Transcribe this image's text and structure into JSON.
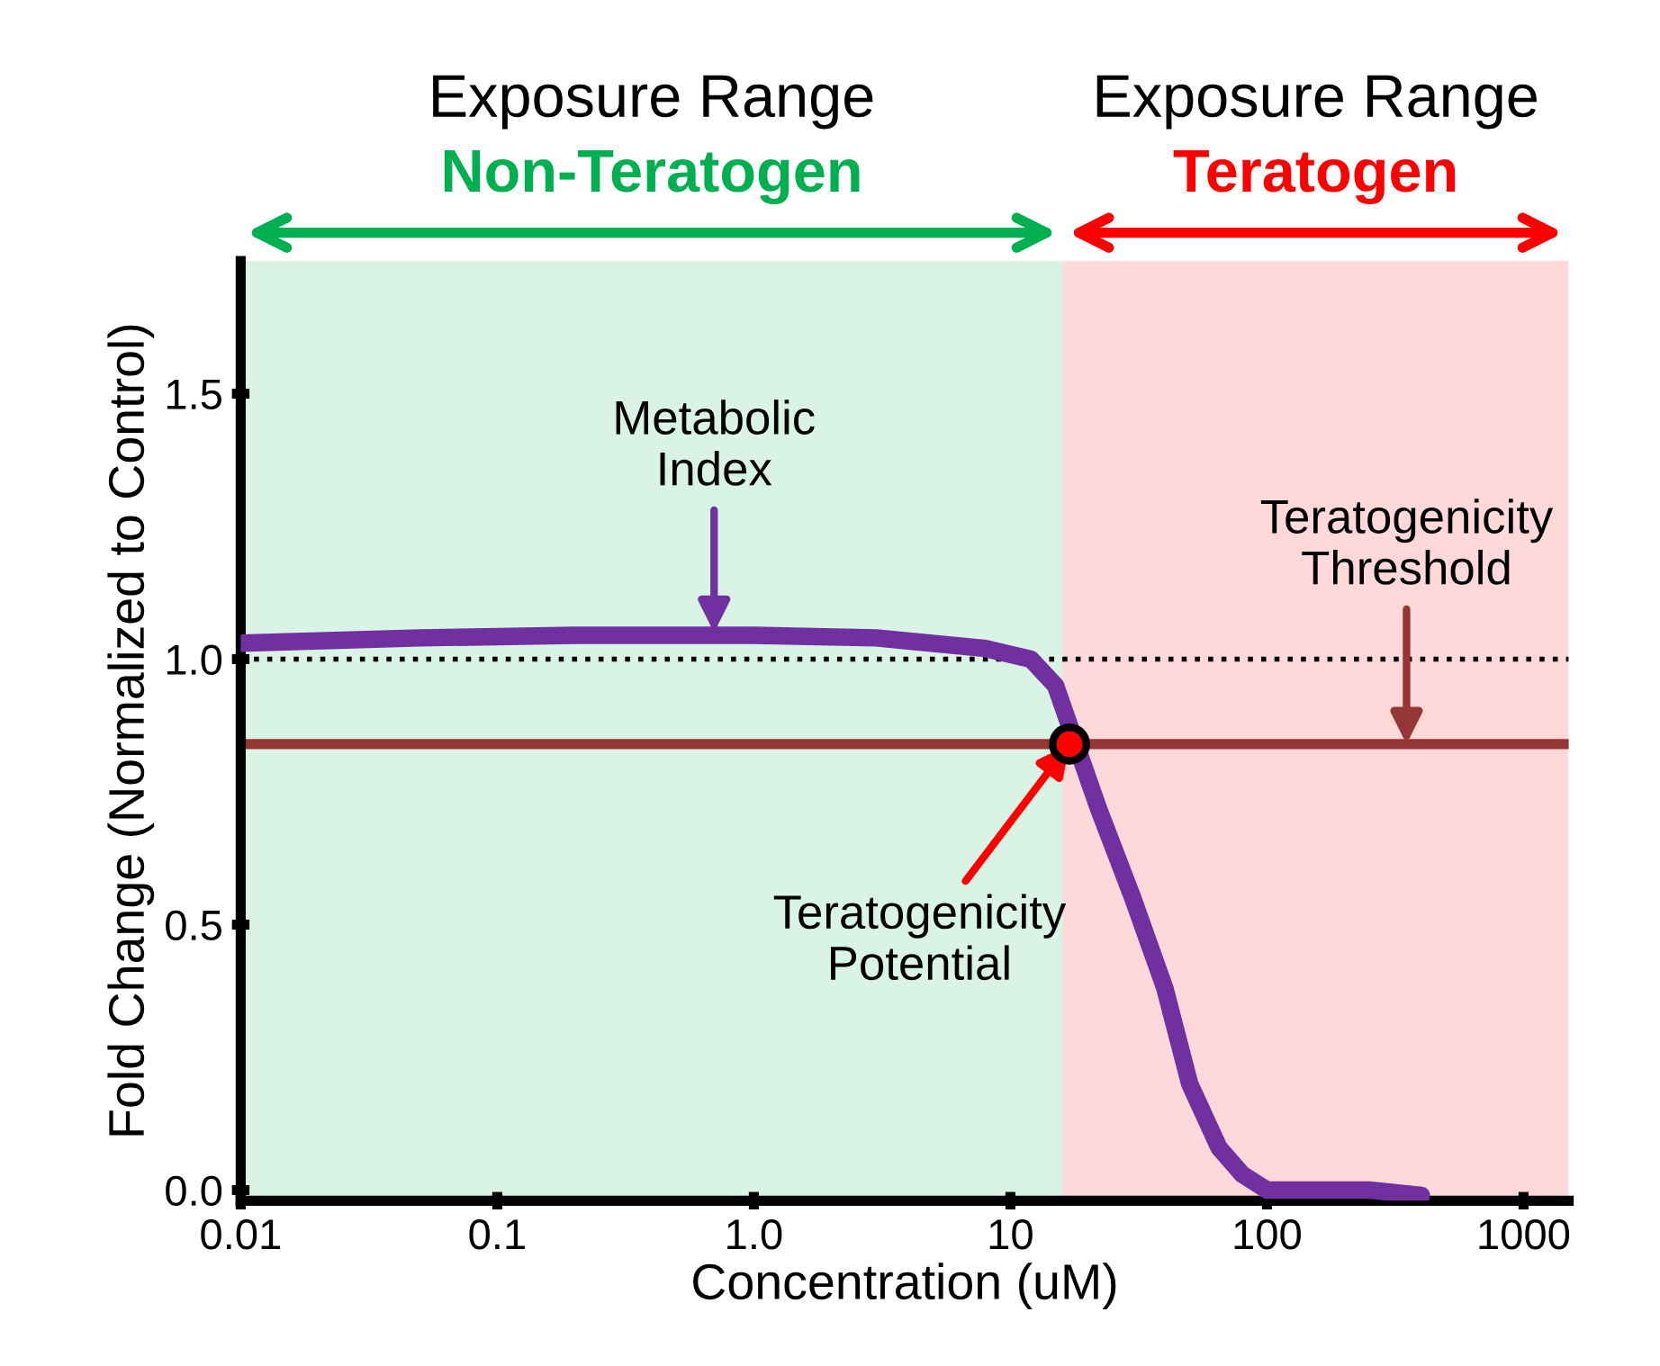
{
  "chart_data": {
    "type": "line",
    "xlabel": "Concentration (uM)",
    "ylabel": "Fold Change (Normalized to Control)",
    "log": "x",
    "xlim": [
      0.01,
      1500
    ],
    "xticks": [
      {
        "value": 0.01,
        "label": "0.01"
      },
      {
        "value": 0.1,
        "label": "0.1"
      },
      {
        "value": 1,
        "label": "1.0"
      },
      {
        "value": 10,
        "label": "10"
      },
      {
        "value": 100,
        "label": "100"
      },
      {
        "value": 1000,
        "label": "1000"
      }
    ],
    "ylim": [
      -0.02,
      1.75
    ],
    "yticks": [
      {
        "value": 0,
        "label": "0.0"
      },
      0.5,
      {
        "value": 1,
        "label": "1.0"
      },
      1.5
    ],
    "grid": false,
    "legend": false,
    "series": [
      {
        "color": "#7030a0",
        "x": [
          0.01,
          0.05,
          0.2,
          1,
          3,
          8,
          12,
          15,
          22,
          30,
          40,
          50,
          65,
          80,
          100,
          150,
          250,
          400
        ],
        "values": [
          1.03,
          1.04,
          1.045,
          1.045,
          1.04,
          1.02,
          1.0,
          0.95,
          0.72,
          0.55,
          0.38,
          0.2,
          0.08,
          0.03,
          0.0,
          0.0,
          0.0,
          -0.01
        ]
      },
      {
        "type": "scatter",
        "color": "#ff0000",
        "x": [
          17
        ],
        "values": [
          0.84
        ],
        "marker": "circle"
      }
    ],
    "ref_lines": [
      {
        "axis": "y",
        "value": 1.0,
        "color": "#000000",
        "line_style": "dotted"
      },
      {
        "axis": "y",
        "value": 0.84,
        "color": "#943634",
        "line_style": "solid"
      }
    ],
    "bands": [
      {
        "axis": "x",
        "from": 0.01,
        "to": 16,
        "label": "Non-Teratogen",
        "color": "#00b050"
      },
      {
        "axis": "x",
        "from": 16,
        "to": 1500,
        "label": "Teratogen",
        "color": "#ff0000"
      }
    ],
    "annotations": [
      "Exposure Range",
      "Exposure Range",
      {
        "text": "Metabolic\nIndex",
        "x": 0.7,
        "y": 1.05
      },
      {
        "text": "Teratogenicity\nThreshold",
        "x": 350,
        "y": 0.84
      },
      {
        "text": "Teratogenicity\nPotential",
        "x": 17,
        "y": 0.84
      }
    ]
  }
}
